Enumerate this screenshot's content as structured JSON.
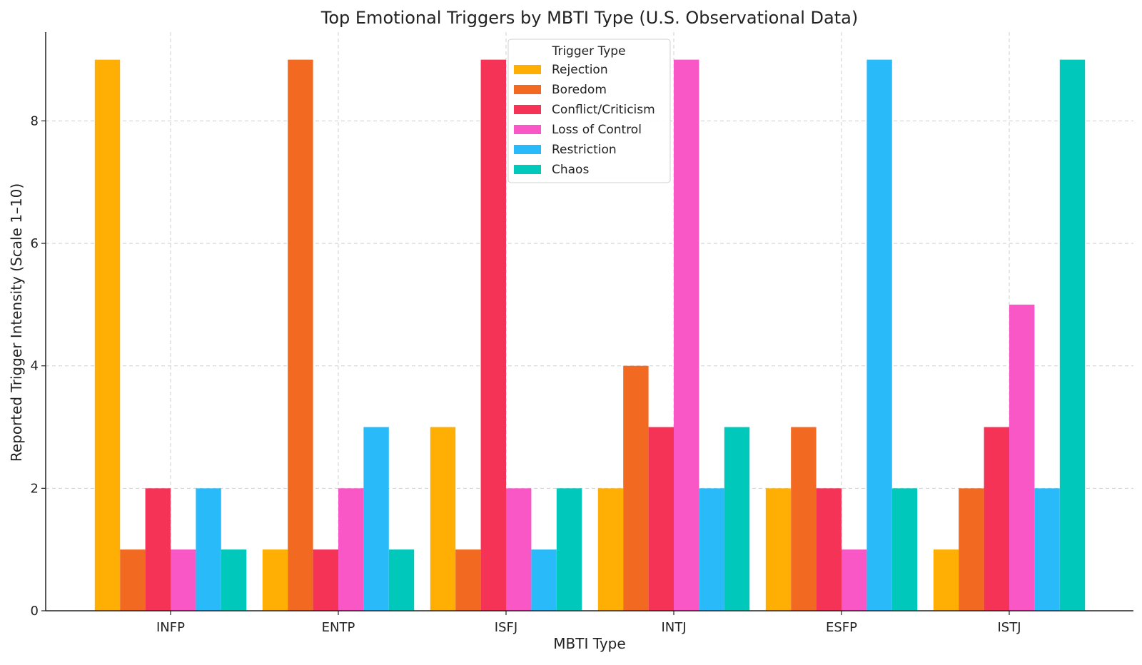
{
  "chart_data": {
    "type": "bar",
    "title": "Top Emotional Triggers by MBTI Type (U.S. Observational Data)",
    "xlabel": "MBTI Type",
    "ylabel": "Reported Trigger Intensity (Scale 1–10)",
    "categories": [
      "INFP",
      "ENTP",
      "ISFJ",
      "INTJ",
      "ESFP",
      "ISTJ"
    ],
    "ylim": [
      0,
      9.45
    ],
    "yticks": [
      0,
      2,
      4,
      6,
      8
    ],
    "grid": true,
    "legend": {
      "title": "Trigger Type",
      "placement": "top-center"
    },
    "series": [
      {
        "name": "Rejection",
        "color": "#FFAE03",
        "values": [
          9,
          1,
          3,
          2,
          2,
          1
        ]
      },
      {
        "name": "Boredom",
        "color": "#F26A21",
        "values": [
          1,
          9,
          1,
          4,
          3,
          2
        ]
      },
      {
        "name": "Conflict/Criticism",
        "color": "#F53357",
        "values": [
          2,
          1,
          9,
          3,
          2,
          3
        ]
      },
      {
        "name": "Loss of Control",
        "color": "#F957C6",
        "values": [
          1,
          2,
          2,
          9,
          1,
          5
        ]
      },
      {
        "name": "Restriction",
        "color": "#29BBF9",
        "values": [
          2,
          3,
          1,
          2,
          9,
          2
        ]
      },
      {
        "name": "Chaos",
        "color": "#00C9BC",
        "values": [
          1,
          1,
          2,
          3,
          2,
          9
        ]
      }
    ]
  }
}
